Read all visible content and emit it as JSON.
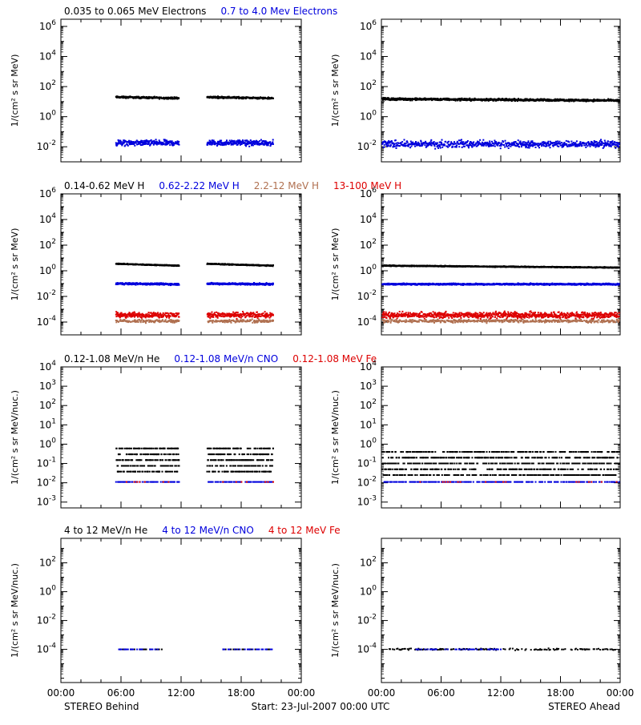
{
  "colors": {
    "black": "#000000",
    "blue": "#0000dd",
    "brown": "#b07050",
    "red": "#dd0000"
  },
  "footer": {
    "left": "STEREO Behind",
    "center": "Start: 23-Jul-2007 00:00 UTC",
    "right": "STEREO Ahead"
  },
  "chart_data": [
    {
      "type": "scatter",
      "panel": "electrons-behind",
      "title_parts": [
        {
          "text": "0.035 to 0.065 MeV Electrons",
          "color": "black"
        },
        {
          "text": "0.7 to 4.0 Mev Electrons",
          "color": "blue"
        }
      ],
      "ylabel": "1/(cm² s sr MeV)",
      "yscale": "log",
      "ylim": [
        0.001,
        3000000
      ],
      "ytick_exponents": [
        -2,
        0,
        2,
        4,
        6
      ],
      "xlim_hours": [
        0,
        24
      ],
      "xtick_labels": [],
      "series": [
        {
          "color": "black",
          "level": 20,
          "segments": [
            [
              5.5,
              11.8
            ],
            [
              14.6,
              21.2
            ]
          ],
          "noise": 0.05,
          "density": 10,
          "gaps": 0.05,
          "trend": -0.15
        },
        {
          "color": "blue",
          "level": 0.018,
          "segments": [
            [
              5.5,
              11.8
            ],
            [
              14.6,
              21.2
            ]
          ],
          "noise": 0.15,
          "density": 10,
          "gaps": 0.1,
          "trend": 0
        }
      ]
    },
    {
      "type": "scatter",
      "panel": "electrons-ahead",
      "title_parts": [],
      "ylabel": "1/(cm² s sr MeV)",
      "yscale": "log",
      "ylim": [
        0.001,
        3000000
      ],
      "ytick_exponents": [
        -2,
        0,
        2,
        4,
        6
      ],
      "xlim_hours": [
        0,
        24
      ],
      "xtick_labels": [],
      "series": [
        {
          "color": "black",
          "level": 15,
          "segments": [
            [
              0.1,
              23.9
            ]
          ],
          "noise": 0.06,
          "density": 10,
          "gaps": 0.03,
          "trend": -0.2
        },
        {
          "color": "blue",
          "level": 0.015,
          "segments": [
            [
              0.1,
              23.9
            ]
          ],
          "noise": 0.2,
          "density": 9,
          "gaps": 0.15,
          "trend": 0
        }
      ]
    },
    {
      "type": "scatter",
      "panel": "protons-behind",
      "title_parts": [
        {
          "text": "0.14-0.62 MeV H",
          "color": "black"
        },
        {
          "text": "0.62-2.22 MeV H",
          "color": "blue"
        },
        {
          "text": "2.2-12 MeV H",
          "color": "brown"
        },
        {
          "text": "13-100 MeV H",
          "color": "red"
        }
      ],
      "ylabel": "1/(cm² s sr MeV)",
      "yscale": "log",
      "ylim": [
        1e-05,
        1000000
      ],
      "ytick_exponents": [
        -4,
        -2,
        0,
        2,
        4,
        6
      ],
      "xlim_hours": [
        0,
        24
      ],
      "xtick_labels": [],
      "series": [
        {
          "color": "black",
          "level": 3.5,
          "segments": [
            [
              5.5,
              11.8
            ],
            [
              14.6,
              21.2
            ]
          ],
          "noise": 0.03,
          "density": 12,
          "gaps": 0.0,
          "trend": -0.3
        },
        {
          "color": "blue",
          "level": 0.1,
          "segments": [
            [
              5.5,
              11.8
            ],
            [
              14.6,
              21.2
            ]
          ],
          "noise": 0.06,
          "density": 12,
          "gaps": 0.02,
          "trend": -0.1
        },
        {
          "color": "brown",
          "level": 0.00012,
          "segments": [
            [
              5.5,
              11.8
            ],
            [
              14.6,
              21.2
            ]
          ],
          "noise": 0.1,
          "density": 6,
          "gaps": 0.2,
          "trend": 0
        },
        {
          "color": "red",
          "level": 0.00035,
          "segments": [
            [
              5.5,
              11.8
            ],
            [
              14.6,
              21.2
            ]
          ],
          "noise": 0.18,
          "density": 10,
          "gaps": 0.1,
          "trend": 0
        }
      ]
    },
    {
      "type": "scatter",
      "panel": "protons-ahead",
      "title_parts": [],
      "ylabel": "1/(cm² s sr MeV)",
      "yscale": "log",
      "ylim": [
        1e-05,
        1000000
      ],
      "ytick_exponents": [
        -4,
        -2,
        0,
        2,
        4,
        6
      ],
      "xlim_hours": [
        0,
        24
      ],
      "xtick_labels": [],
      "series": [
        {
          "color": "black",
          "level": 2.5,
          "segments": [
            [
              0.1,
              23.9
            ]
          ],
          "noise": 0.03,
          "density": 12,
          "gaps": 0.0,
          "trend": -0.3
        },
        {
          "color": "blue",
          "level": 0.09,
          "segments": [
            [
              0.1,
              23.9
            ]
          ],
          "noise": 0.05,
          "density": 12,
          "gaps": 0.02,
          "trend": 0
        },
        {
          "color": "brown",
          "level": 0.00012,
          "segments": [
            [
              0.1,
              23.9
            ]
          ],
          "noise": 0.1,
          "density": 6,
          "gaps": 0.2,
          "trend": 0
        },
        {
          "color": "red",
          "level": 0.00035,
          "segments": [
            [
              0.1,
              23.9
            ]
          ],
          "noise": 0.2,
          "density": 10,
          "gaps": 0.1,
          "trend": 0
        }
      ]
    },
    {
      "type": "scatter",
      "panel": "heavy-low-behind",
      "title_parts": [
        {
          "text": "0.12-1.08 MeV/n He",
          "color": "black"
        },
        {
          "text": "0.12-1.08 MeV/n CNO",
          "color": "blue"
        },
        {
          "text": "0.12-1.08 MeV Fe",
          "color": "red"
        }
      ],
      "ylabel": "1/(cm² s sr MeV/nuc.)",
      "yscale": "log",
      "ylim": [
        0.0005,
        10000
      ],
      "ytick_exponents": [
        -3,
        -2,
        -1,
        0,
        1,
        2,
        3,
        4
      ],
      "xlim_hours": [
        0,
        24
      ],
      "xtick_labels": [],
      "series": [
        {
          "color": "black",
          "level": 0.15,
          "segments": [
            [
              5.5,
              11.8
            ],
            [
              14.6,
              21.2
            ]
          ],
          "noise": 0.3,
          "density": 14,
          "gaps": 0.1,
          "trend": 0,
          "quantized": true
        },
        {
          "color": "blue",
          "level": 0.011,
          "segments": [
            [
              5.5,
              11.8
            ],
            [
              14.6,
              21.2
            ]
          ],
          "noise": 0.0,
          "density": 4,
          "gaps": 0.4,
          "trend": 0
        },
        {
          "color": "red",
          "level": 0.011,
          "segments": [
            [
              5.5,
              11.8
            ],
            [
              14.6,
              21.2
            ]
          ],
          "noise": 0.0,
          "density": 1,
          "gaps": 0.7,
          "trend": 0
        }
      ]
    },
    {
      "type": "scatter",
      "panel": "heavy-low-ahead",
      "title_parts": [],
      "ylabel": "1/(cm² s sr MeV/nuc.)",
      "yscale": "log",
      "ylim": [
        0.0005,
        10000
      ],
      "ytick_exponents": [
        -3,
        -2,
        -1,
        0,
        1,
        2,
        3,
        4
      ],
      "xlim_hours": [
        0,
        24
      ],
      "xtick_labels": [],
      "series": [
        {
          "color": "black",
          "level": 0.1,
          "segments": [
            [
              0.1,
              23.9
            ]
          ],
          "noise": 0.3,
          "density": 12,
          "gaps": 0.1,
          "trend": 0,
          "quantized": true
        },
        {
          "color": "blue",
          "level": 0.011,
          "segments": [
            [
              0.1,
              23.9
            ]
          ],
          "noise": 0.0,
          "density": 4,
          "gaps": 0.4,
          "trend": 0
        },
        {
          "color": "red",
          "level": 0.011,
          "segments": [
            [
              0.1,
              23.9
            ]
          ],
          "noise": 0.0,
          "density": 1,
          "gaps": 0.8,
          "trend": 0
        }
      ]
    },
    {
      "type": "scatter",
      "panel": "heavy-high-behind",
      "title_parts": [
        {
          "text": "4 to 12 MeV/n He",
          "color": "black"
        },
        {
          "text": "4 to 12 MeV/n CNO",
          "color": "blue"
        },
        {
          "text": "4 to 12 MeV Fe",
          "color": "red"
        }
      ],
      "ylabel": "1/(cm² s sr MeV/nuc.)",
      "yscale": "log",
      "ylim": [
        5e-07,
        5000
      ],
      "ytick_exponents": [
        -4,
        -2,
        0,
        2
      ],
      "xlim_hours": [
        0,
        24
      ],
      "xtick_labels": [
        "00:00",
        "06:00",
        "12:00",
        "18:00",
        "00:00"
      ],
      "series": [
        {
          "color": "black",
          "level": 0.0001,
          "segments": [
            [
              5.8,
              10.2
            ],
            [
              16.2,
              21.2
            ]
          ],
          "noise": 0.0,
          "density": 2,
          "gaps": 0.5,
          "trend": 0
        },
        {
          "color": "blue",
          "level": 0.0001,
          "segments": [
            [
              5.8,
              9.8
            ],
            [
              16.2,
              21.2
            ]
          ],
          "noise": 0.0,
          "density": 2,
          "gaps": 0.5,
          "trend": 0
        }
      ]
    },
    {
      "type": "scatter",
      "panel": "heavy-high-ahead",
      "title_parts": [],
      "ylabel": "1/(cm² s sr MeV/nuc.)",
      "yscale": "log",
      "ylim": [
        5e-07,
        5000
      ],
      "ytick_exponents": [
        -4,
        -2,
        0,
        2
      ],
      "xlim_hours": [
        0,
        24
      ],
      "xtick_labels": [
        "00:00",
        "06:00",
        "12:00",
        "18:00",
        "00:00"
      ],
      "series": [
        {
          "color": "black",
          "level": 0.0001,
          "segments": [
            [
              0.8,
              23.5
            ]
          ],
          "noise": 0.05,
          "density": 3,
          "gaps": 0.5,
          "trend": 0
        },
        {
          "color": "blue",
          "level": 0.0001,
          "segments": [
            [
              3.5,
              12.0
            ]
          ],
          "noise": 0.0,
          "density": 2,
          "gaps": 0.5,
          "trend": 0
        }
      ]
    }
  ]
}
